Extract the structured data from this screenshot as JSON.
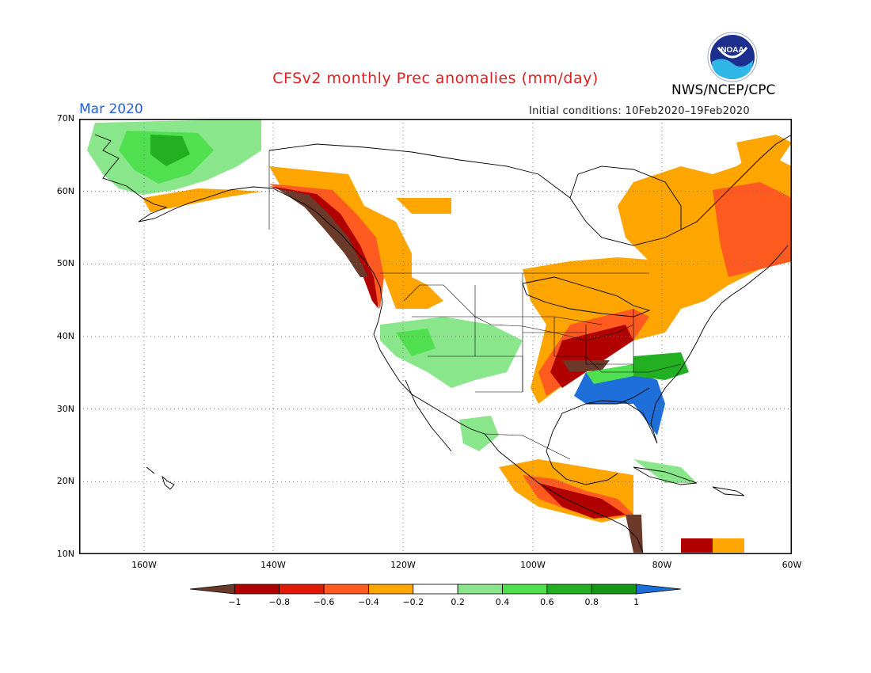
{
  "header": {
    "title": "CFSv2 monthly Prec anomalies (mm/day)",
    "agency": "NWS/NCEP/CPC",
    "logo_text": "NOAA",
    "period": "Mar 2020",
    "initial_conditions": "Initial conditions: 10Feb2020–19Feb2020"
  },
  "colors": {
    "title": "#e02020",
    "period": "#2060e0",
    "dry_extreme": "#6b3a2a",
    "dry_strong": "#b00000",
    "dry_mod": "#e01a00",
    "dry_light": "#ff5a1f",
    "dry_weak": "#ffa500",
    "wet_weak": "#8ae68a",
    "wet_light": "#4fdf4f",
    "wet_mod": "#22b022",
    "wet_strong": "#149614",
    "wet_extreme": "#1e6fd9"
  },
  "axes": {
    "lat_labels": [
      "70N",
      "60N",
      "50N",
      "40N",
      "30N",
      "20N",
      "10N"
    ],
    "lon_labels": [
      "160W",
      "140W",
      "120W",
      "100W",
      "80W",
      "60W"
    ]
  },
  "colorbar": {
    "tick_labels": [
      "−1",
      "−0.8",
      "−0.6",
      "−0.4",
      "−0.2",
      "0.2",
      "0.4",
      "0.6",
      "0.8",
      "1"
    ]
  }
}
